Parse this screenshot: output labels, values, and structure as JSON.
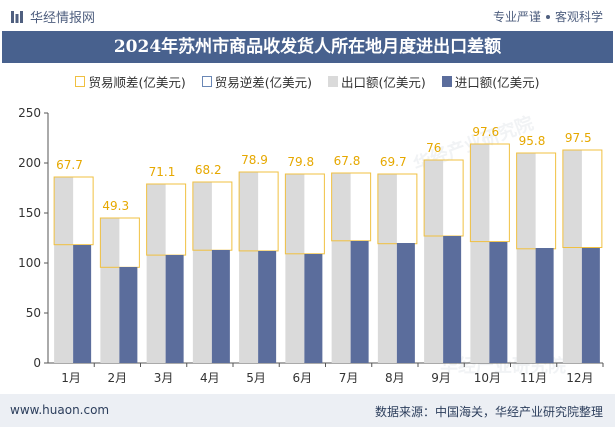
{
  "header": {
    "brand": "华经情报网",
    "tagline_left": "专业严谨",
    "tagline_right": "客观科学"
  },
  "colors": {
    "title_bg": "#48618e",
    "export_bar": "#dadada",
    "import_bar": "#5b6d9c",
    "balance_outline": "#f0c040",
    "label_text": "#e6a800"
  },
  "legend": {
    "surplus": "贸易顺差(亿美元)",
    "deficit": "贸易逆差(亿美元)",
    "exports": "出口额(亿美元)",
    "imports": "进口额(亿美元)"
  },
  "watermark": "华经产业研究院",
  "footer": {
    "url": "www.huaon.com",
    "source": "数据来源：中国海关，华经产业研究院整理"
  },
  "chart_data": {
    "type": "bar",
    "title": "2024年苏州市商品收发货人所在地月度进出口差额",
    "categories": [
      "1月",
      "2月",
      "3月",
      "4月",
      "5月",
      "6月",
      "7月",
      "8月",
      "9月",
      "10月",
      "11月",
      "12月"
    ],
    "ylim": [
      0,
      250
    ],
    "yticks": [
      0,
      50,
      100,
      150,
      200,
      250
    ],
    "series": [
      {
        "name": "出口额(亿美元)",
        "values": [
          186,
          145,
          179,
          181,
          191,
          189,
          190,
          189,
          203,
          219,
          210,
          213
        ]
      },
      {
        "name": "进口额(亿美元)",
        "values": [
          118,
          96,
          108,
          113,
          112,
          109,
          122,
          120,
          127,
          121,
          115,
          115
        ]
      },
      {
        "name": "贸易顺差(亿美元)",
        "values": [
          67.7,
          49.3,
          71.1,
          68.2,
          78.9,
          79.8,
          67.8,
          69.7,
          76,
          97.6,
          95.8,
          97.5
        ]
      }
    ],
    "grid": false,
    "legend_position": "top"
  }
}
